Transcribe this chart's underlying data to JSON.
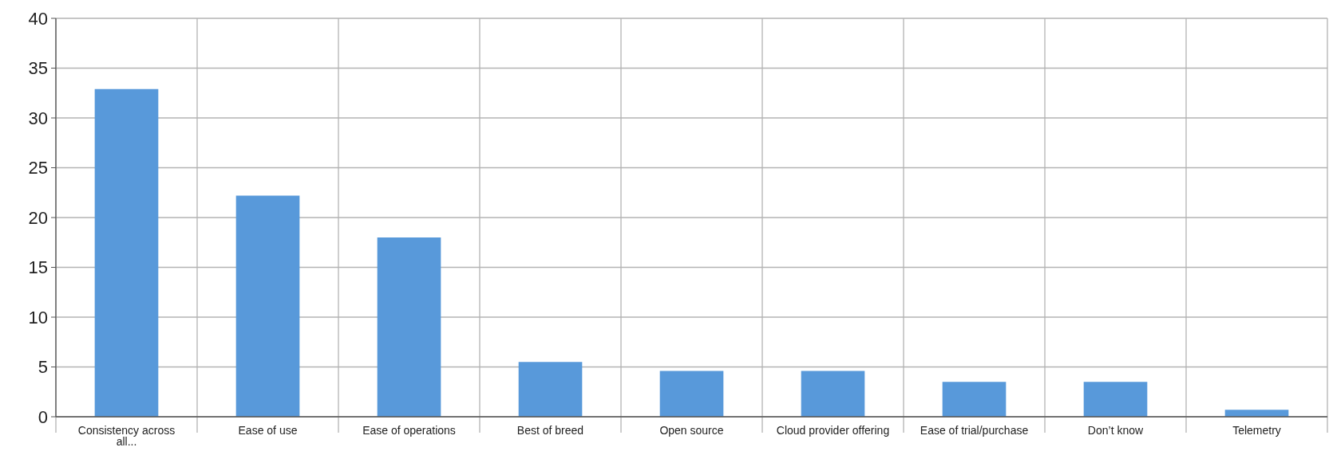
{
  "chart_data": {
    "type": "bar",
    "categories": [
      "Consistency across all...",
      "Ease of use",
      "Ease of operations",
      "Best of breed",
      "Open source",
      "Cloud provider offering",
      "Ease of trial/purchase",
      "Don’t know",
      "Telemetry"
    ],
    "values": [
      32.9,
      22.2,
      18,
      5.5,
      4.6,
      4.6,
      3.5,
      3.5,
      0.7
    ],
    "color": "#5899da",
    "ylim": [
      0,
      40
    ],
    "yticks": [
      0,
      5,
      10,
      15,
      20,
      25,
      30,
      35,
      40
    ],
    "grid": true
  }
}
